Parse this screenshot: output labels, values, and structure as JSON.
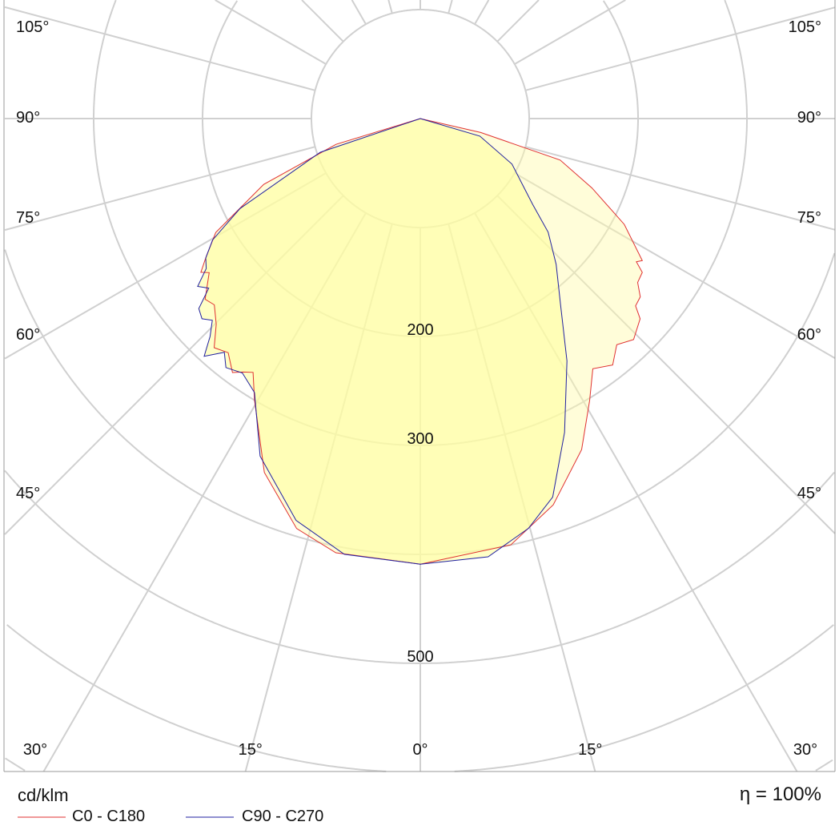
{
  "chart_data": {
    "type": "polar",
    "unit_label": "cd/klm",
    "efficiency_label": "η = 100%",
    "radial_ticks": [
      100,
      200,
      300,
      400,
      500,
      600,
      700,
      800
    ],
    "radial_tick_labels": [
      {
        "value": 200,
        "text": "200"
      },
      {
        "value": 300,
        "text": "300"
      },
      {
        "value": 500,
        "text": "500"
      }
    ],
    "angle_labels_bottom": [
      {
        "angle": -30,
        "text": "30°"
      },
      {
        "angle": -15,
        "text": "15°"
      },
      {
        "angle": 0,
        "text": "0°"
      },
      {
        "angle": 15,
        "text": "15°"
      },
      {
        "angle": 30,
        "text": "30°"
      }
    ],
    "angle_labels_side": [
      {
        "angle": 45,
        "text": "45°"
      },
      {
        "angle": 60,
        "text": "60°"
      },
      {
        "angle": 75,
        "text": "75°"
      },
      {
        "angle": 90,
        "text": "90°"
      },
      {
        "angle": 105,
        "text": "105°"
      }
    ],
    "grid": true,
    "legend_position": "bottom-left",
    "series": [
      {
        "name": "C0 - C180",
        "color": "#e03030",
        "right": [
          [
            0,
            409
          ],
          [
            12,
            400
          ],
          [
            19,
            375
          ],
          [
            26,
            338
          ],
          [
            31,
            302
          ],
          [
            34.6,
            279
          ],
          [
            38,
            287
          ],
          [
            41,
            275
          ],
          [
            44,
            282
          ],
          [
            47.7,
            273
          ],
          [
            49,
            262
          ],
          [
            51,
            260
          ],
          [
            53,
            250
          ],
          [
            55.3,
            248
          ],
          [
            56.5,
            238
          ],
          [
            57.4,
            242
          ],
          [
            62.6,
            211
          ],
          [
            68,
            170
          ],
          [
            73.5,
            134
          ],
          [
            77,
            57
          ],
          [
            90,
            0
          ]
        ],
        "left": [
          [
            0,
            409
          ],
          [
            11,
            406
          ],
          [
            16.8,
            393
          ],
          [
            23.8,
            355
          ],
          [
            30.5,
            300
          ],
          [
            33.4,
            279
          ],
          [
            35,
            284
          ],
          [
            36.5,
            290
          ],
          [
            39.4,
            278
          ],
          [
            42,
            283
          ],
          [
            44.8,
            266
          ],
          [
            47.9,
            255
          ],
          [
            50,
            258
          ],
          [
            53.9,
            240
          ],
          [
            55,
            246
          ],
          [
            57.2,
            234
          ],
          [
            60.9,
            215
          ],
          [
            67.2,
            156
          ],
          [
            73,
            81
          ],
          [
            90,
            0
          ]
        ]
      },
      {
        "name": "C90 - C270",
        "color": "#2020a0",
        "right": [
          [
            0,
            409
          ],
          [
            8.8,
            407
          ],
          [
            14.8,
            389
          ],
          [
            19.3,
            368
          ],
          [
            24.7,
            317
          ],
          [
            31.2,
            260
          ],
          [
            37,
            214
          ],
          [
            43,
            183
          ],
          [
            48.4,
            157
          ],
          [
            52.6,
            130
          ],
          [
            56.2,
            115
          ],
          [
            63.6,
            94
          ],
          [
            73.6,
            57
          ],
          [
            90,
            0
          ]
        ],
        "left": [
          [
            0,
            409
          ],
          [
            9.9,
            406
          ],
          [
            17.2,
            386
          ],
          [
            25.4,
            343
          ],
          [
            31.2,
            294
          ],
          [
            35,
            285
          ],
          [
            38,
            290
          ],
          [
            40,
            280
          ],
          [
            42.3,
            295
          ],
          [
            44,
            278
          ],
          [
            45.9,
            266
          ],
          [
            47.5,
            272
          ],
          [
            49.4,
            268
          ],
          [
            51.3,
            249
          ],
          [
            53,
            256
          ],
          [
            55,
            240
          ],
          [
            57,
            235
          ],
          [
            59.7,
            221
          ],
          [
            63.5,
            185
          ],
          [
            71.4,
            97
          ],
          [
            90,
            0
          ]
        ]
      }
    ]
  }
}
